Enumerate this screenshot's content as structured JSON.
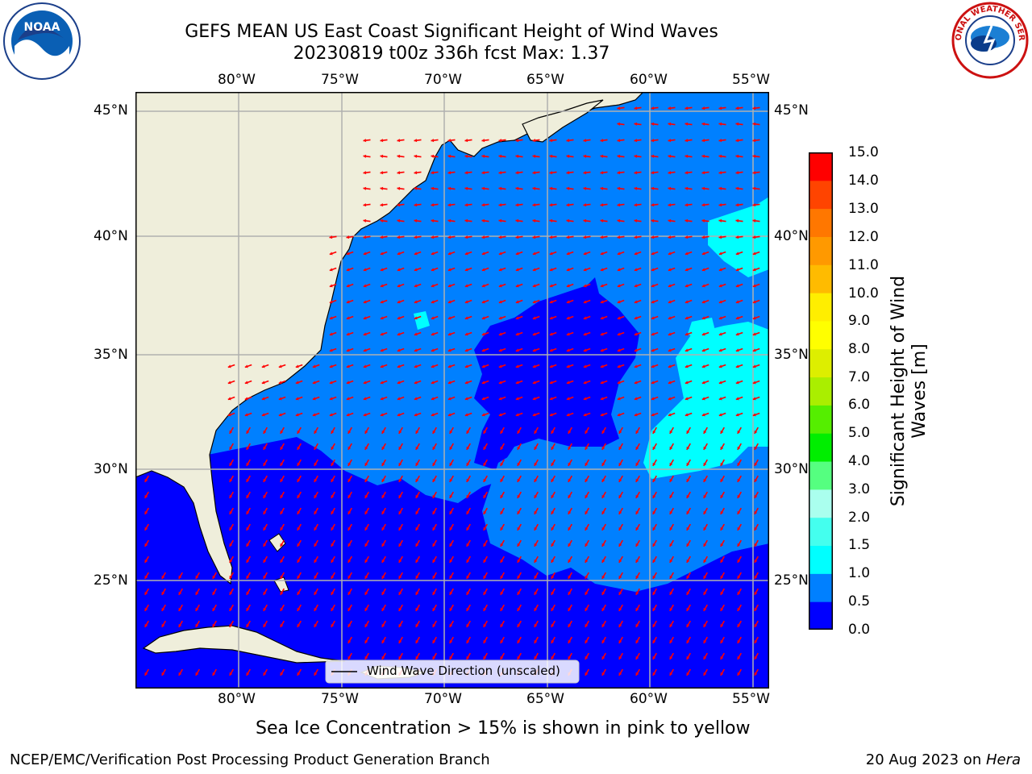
{
  "title": {
    "line1": "GEFS MEAN US East Coast Significant Height of Wind Waves",
    "line2": "20230819 t00z 336h fcst   Max: 1.37"
  },
  "logos": {
    "left": {
      "icon": "noaa-logo",
      "text": "NOAA"
    },
    "right": {
      "icon": "national-weather-service-logo",
      "text": "NATIONAL WEATHER SERVICE"
    }
  },
  "map": {
    "lon_labels": [
      "80°W",
      "75°W",
      "70°W",
      "65°W",
      "60°W",
      "55°W"
    ],
    "lat_labels": [
      "45°N",
      "40°N",
      "35°N",
      "30°N",
      "25°N"
    ],
    "lon_range": [
      -85,
      -54.5
    ],
    "lat_range": [
      20.5,
      45.8
    ],
    "colors": {
      "land": "#efeedb",
      "wave_0_0p5": "#0000ff",
      "wave_0p5_1": "#0080ff",
      "wave_1_1p5": "#00ffff",
      "arrows": "#ff0000",
      "grid": "#b0b0b0"
    },
    "legend_label": "Wind Wave Direction (unscaled)"
  },
  "colorbar": {
    "label": "Significant Height of Wind Waves [m]",
    "ticks": [
      "15.0",
      "14.0",
      "13.0",
      "12.0",
      "11.0",
      "10.0",
      "9.0",
      "8.0",
      "7.0",
      "6.0",
      "5.0",
      "4.0",
      "3.0",
      "2.0",
      "1.5",
      "1.0",
      "0.5",
      "0.0"
    ],
    "levels": [
      0.0,
      0.5,
      1.0,
      1.5,
      2.0,
      3.0,
      4.0,
      5.0,
      6.0,
      7.0,
      8.0,
      9.0,
      10.0,
      11.0,
      12.0,
      13.0,
      14.0,
      15.0
    ],
    "colors": [
      "#0000ff",
      "#0080ff",
      "#00ffff",
      "#44ffee",
      "#aaffee",
      "#55ff80",
      "#00ee00",
      "#55ee00",
      "#aaee00",
      "#ddee00",
      "#ffff00",
      "#ffee00",
      "#ffbb00",
      "#ff9900",
      "#ff7700",
      "#ff4400",
      "#ff0000"
    ]
  },
  "note": "Sea Ice Concentration > 15% is shown in pink to yellow",
  "footer": {
    "left": "NCEP/EMC/Verification Post Processing Product Generation Branch",
    "right_date": "20 Aug 2023 on ",
    "right_machine": "Hera"
  }
}
